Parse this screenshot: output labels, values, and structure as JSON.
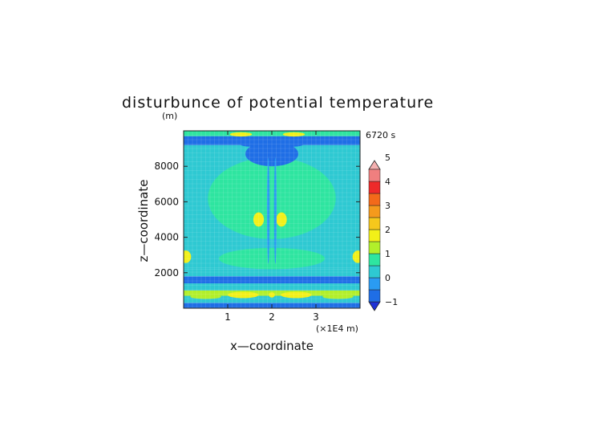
{
  "chart_data": {
    "type": "heatmap",
    "title": "disturbunce of potential temperature",
    "xlabel": "x—coordinate",
    "ylabel": "z—coordinate",
    "y_unit": "(m)",
    "x_unit": "(×1E4 m)",
    "time_label": "6720 s",
    "x_range": [
      0,
      4.0
    ],
    "y_range": [
      0,
      10000
    ],
    "x_ticks": [
      1,
      2,
      3
    ],
    "x_tick_labels": [
      "1",
      "2",
      "3"
    ],
    "y_ticks": [
      2000,
      4000,
      6000,
      8000
    ],
    "y_tick_labels": [
      "2000",
      "4000",
      "6000",
      "8000"
    ],
    "colorbar": {
      "levels": [
        -1,
        -0.5,
        0,
        0.5,
        1,
        1.5,
        2,
        2.5,
        3,
        3.5,
        4,
        4.5,
        5
      ],
      "tick_labels": [
        "−1",
        "0",
        "1",
        "2",
        "3",
        "4",
        "5"
      ],
      "colors": [
        "#1e32d6",
        "#1f6ee6",
        "#2a9bf2",
        "#2ec9d2",
        "#2ee5a0",
        "#b2ef2a",
        "#f2f018",
        "#f5c81c",
        "#f59a1c",
        "#f36a1a",
        "#ee2a2a",
        "#f07f7f",
        "#f5b0b0"
      ]
    },
    "bands": [
      {
        "y_range": [
          0,
          300
        ],
        "value": -1
      },
      {
        "y_range": [
          300,
          700
        ],
        "value": 0.3
      },
      {
        "y_range": [
          700,
          1000
        ],
        "value": 1.3
      },
      {
        "y_range": [
          1000,
          1400
        ],
        "value": 0.3
      },
      {
        "y_range": [
          1400,
          1800
        ],
        "value": -0.6
      },
      {
        "y_range": [
          1800,
          2200
        ],
        "value": 0.3
      },
      {
        "y_range": [
          2200,
          9200
        ],
        "value": 0.3
      },
      {
        "y_range": [
          9200,
          9700
        ],
        "value": -0.6
      },
      {
        "y_range": [
          9700,
          10000
        ],
        "value": 0.8
      }
    ],
    "features": [
      {
        "kind": "blob",
        "cx": 2.0,
        "cy": 6200,
        "rx": 1.45,
        "ry": 2300,
        "value": 0.8
      },
      {
        "kind": "blob",
        "cx": 2.0,
        "cy": 2800,
        "rx": 1.2,
        "ry": 600,
        "value": 0.8
      },
      {
        "kind": "blob",
        "cx": 1.7,
        "cy": 5000,
        "rx": 0.12,
        "ry": 400,
        "value": 1.6
      },
      {
        "kind": "blob",
        "cx": 2.22,
        "cy": 5000,
        "rx": 0.12,
        "ry": 400,
        "value": 1.6
      },
      {
        "kind": "blob",
        "cx": 1.35,
        "cy": 750,
        "rx": 0.35,
        "ry": 180,
        "value": 1.6
      },
      {
        "kind": "blob",
        "cx": 2.55,
        "cy": 750,
        "rx": 0.35,
        "ry": 180,
        "value": 1.6
      },
      {
        "kind": "blob",
        "cx": 2.0,
        "cy": 750,
        "rx": 0.07,
        "ry": 150,
        "value": 1.6
      },
      {
        "kind": "blob",
        "cx": 0.5,
        "cy": 650,
        "rx": 0.35,
        "ry": 130,
        "value": 1.3
      },
      {
        "kind": "blob",
        "cx": 3.5,
        "cy": 650,
        "rx": 0.35,
        "ry": 130,
        "value": 1.3
      },
      {
        "kind": "blob",
        "cx": 0.05,
        "cy": 2900,
        "rx": 0.12,
        "ry": 350,
        "value": 1.6
      },
      {
        "kind": "blob",
        "cx": 3.95,
        "cy": 2900,
        "rx": 0.12,
        "ry": 350,
        "value": 1.6
      },
      {
        "kind": "blob",
        "cx": 2.0,
        "cy": 8700,
        "rx": 0.6,
        "ry": 700,
        "value": -0.6
      },
      {
        "kind": "blob",
        "cx": 1.55,
        "cy": 9300,
        "rx": 0.3,
        "ry": 200,
        "value": -1
      },
      {
        "kind": "blob",
        "cx": 2.45,
        "cy": 9300,
        "rx": 0.3,
        "ry": 200,
        "value": -1
      },
      {
        "kind": "blob",
        "cx": 1.3,
        "cy": 9800,
        "rx": 0.25,
        "ry": 120,
        "value": 1.6
      },
      {
        "kind": "blob",
        "cx": 2.5,
        "cy": 9800,
        "rx": 0.25,
        "ry": 120,
        "value": 1.6
      },
      {
        "kind": "blob",
        "cx": 2.0,
        "cy": 100,
        "rx": 0.6,
        "ry": 120,
        "value": -1
      },
      {
        "kind": "stripe",
        "cx": 1.92,
        "cy": 5500,
        "rx": 0.03,
        "ry": 3000,
        "value": -0.1
      },
      {
        "kind": "stripe",
        "cx": 2.08,
        "cy": 5500,
        "rx": 0.03,
        "ry": 3000,
        "value": -0.1
      }
    ]
  }
}
